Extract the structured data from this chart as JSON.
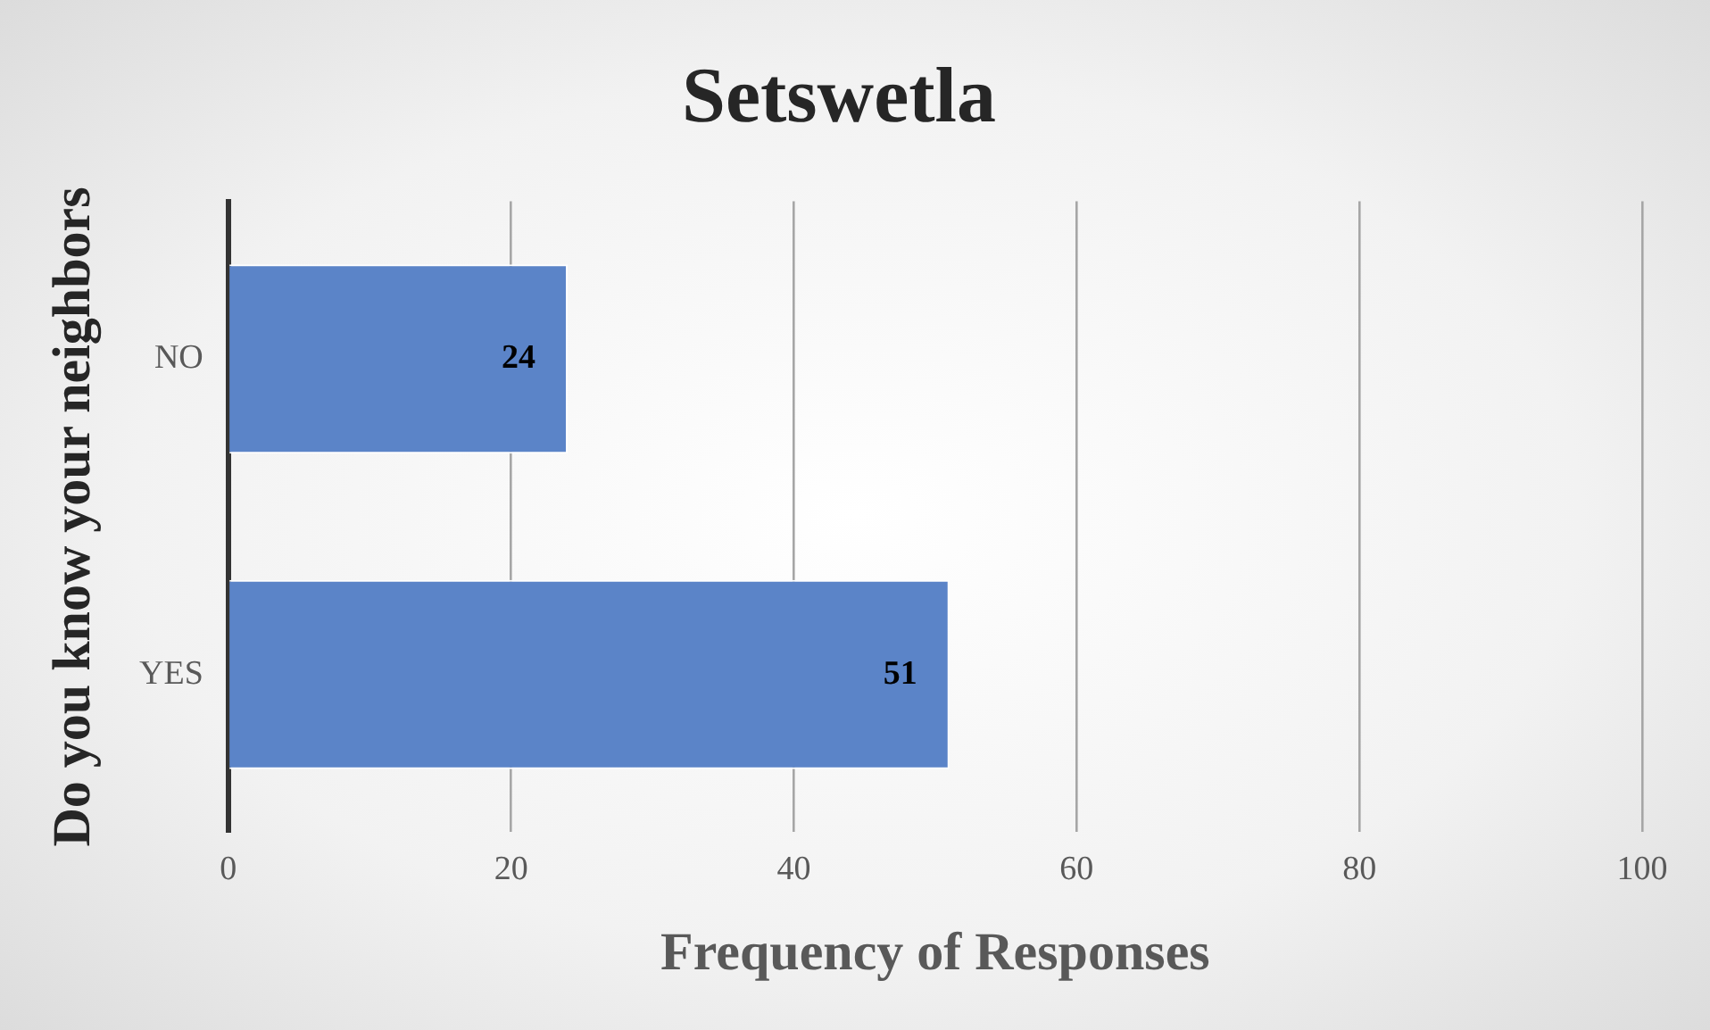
{
  "chart_data": {
    "type": "bar",
    "orientation": "horizontal",
    "title": "Setswetla",
    "xlabel": "Frequency of Responses",
    "ylabel": "Do you know your neighbors",
    "categories": [
      "NO",
      "YES"
    ],
    "values": [
      24,
      51
    ],
    "color": "#5b84c8",
    "xlim": [
      0,
      100
    ],
    "xticks": [
      0,
      20,
      40,
      60,
      80,
      100
    ],
    "grid": "x",
    "data_labels": true
  }
}
